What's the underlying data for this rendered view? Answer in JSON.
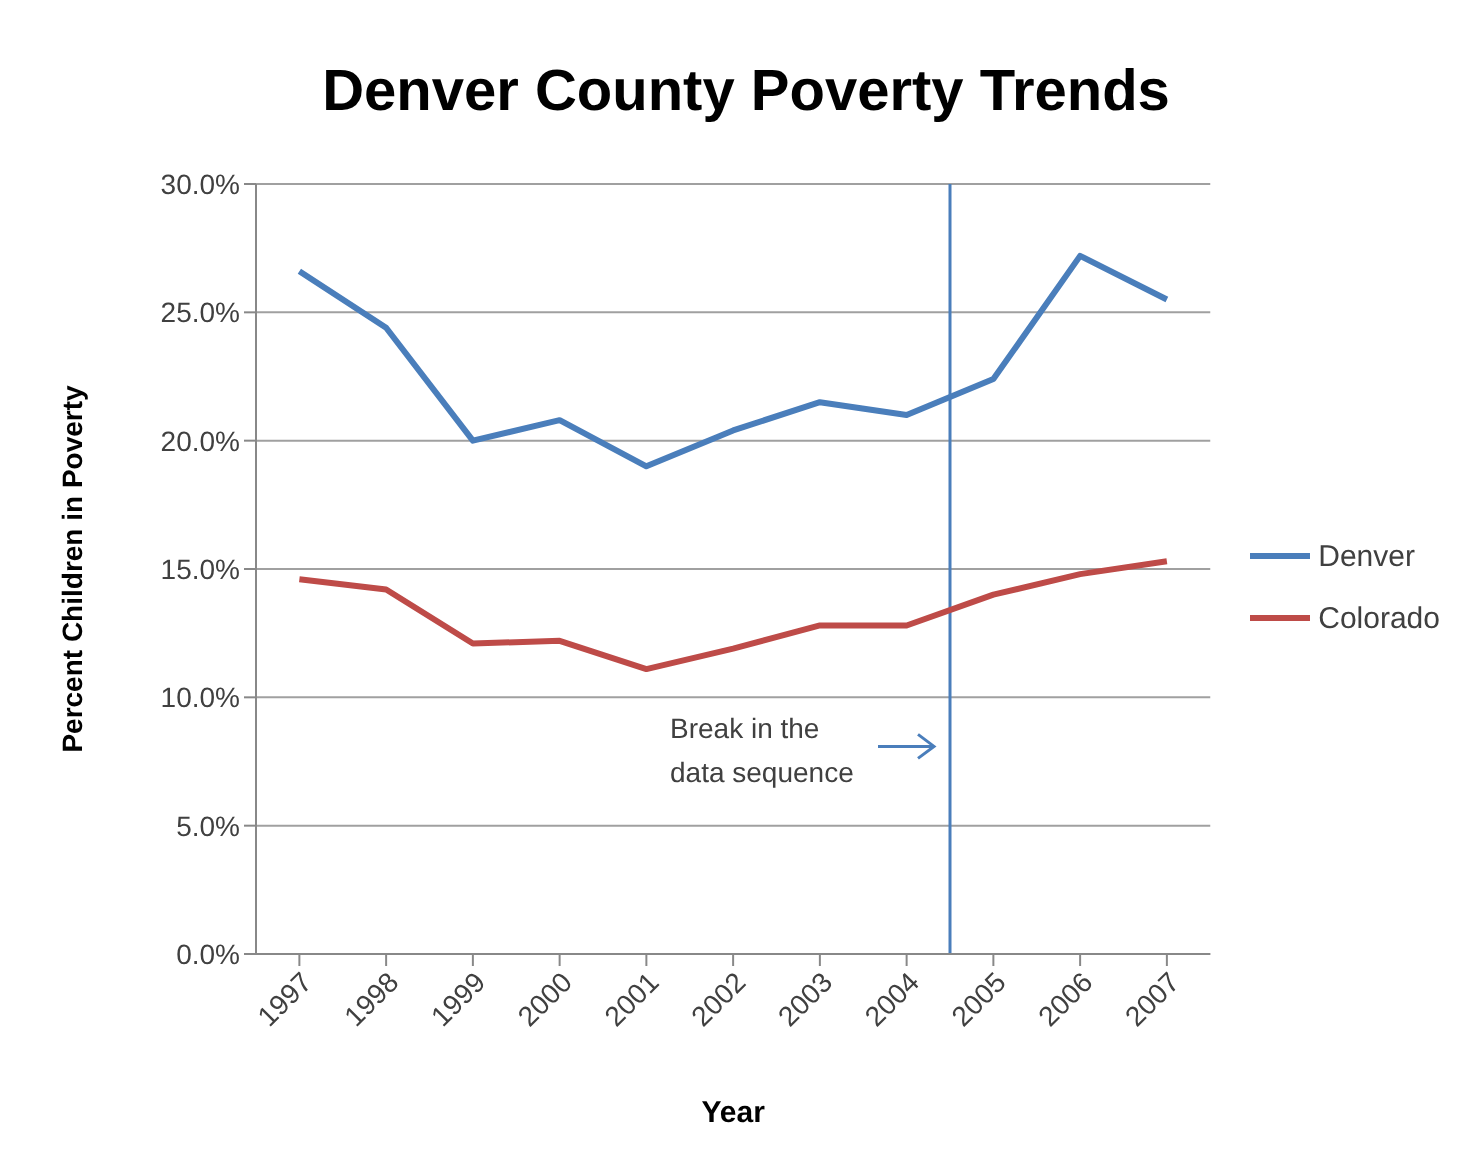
{
  "chart_data": {
    "type": "line",
    "title": "Denver County Poverty Trends",
    "xlabel": "Year",
    "ylabel": "Percent Children in Poverty",
    "x": [
      1997,
      1998,
      1999,
      2000,
      2001,
      2002,
      2003,
      2004,
      2005,
      2006,
      2007
    ],
    "xlim": [
      1996.5,
      2007.5
    ],
    "xticks": [
      1997,
      1998,
      1999,
      2000,
      2001,
      2002,
      2003,
      2004,
      2005,
      2006,
      2007
    ],
    "series": [
      {
        "name": "Denver",
        "color": "#4a7ebb",
        "values": [
          26.6,
          24.4,
          20.0,
          20.8,
          19.0,
          20.4,
          21.5,
          21.0,
          22.4,
          27.2,
          25.5
        ]
      },
      {
        "name": "Colorado",
        "color": "#be4b48",
        "values": [
          14.6,
          14.2,
          12.1,
          12.2,
          11.1,
          11.9,
          12.8,
          12.8,
          14.0,
          14.8,
          15.3
        ]
      }
    ],
    "ylim": [
      0,
      30
    ],
    "yticks": [
      {
        "value": 0,
        "label": "0.0%"
      },
      {
        "value": 5,
        "label": "5.0%"
      },
      {
        "value": 10,
        "label": "10.0%"
      },
      {
        "value": 15,
        "label": "15.0%"
      },
      {
        "value": 20,
        "label": "20.0%"
      },
      {
        "value": 25,
        "label": "25.0%"
      },
      {
        "value": 30,
        "label": "30.0%"
      }
    ],
    "ref_lines": [
      {
        "axis": "x",
        "value": 2004.5,
        "label": "Break in the data sequence",
        "color": "#4a7ebb"
      }
    ],
    "grid": "y",
    "legend": "right",
    "marker": "none",
    "line_style": "solid"
  }
}
